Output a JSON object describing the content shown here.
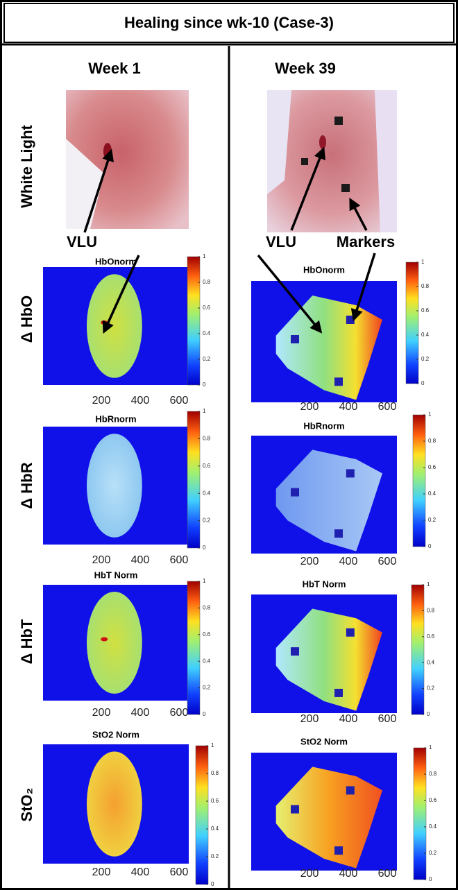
{
  "title": "Healing since wk-10 (Case-3)",
  "columns": [
    "Week 1",
    "Week 39"
  ],
  "rows": [
    {
      "label": "White Light"
    },
    {
      "label": "Δ HbO",
      "panels": [
        "HbOnorm",
        "HbOnorm"
      ]
    },
    {
      "label": "Δ HbR",
      "panels": [
        "HbRnorm",
        "HbRnorm"
      ]
    },
    {
      "label": "Δ HbT",
      "panels": [
        "HbT Norm",
        "HbT Norm"
      ]
    },
    {
      "label": "StO₂",
      "panels": [
        "StO2 Norm",
        "StO2 Norm"
      ]
    }
  ],
  "annotations": [
    "VLU",
    "VLU",
    "Markers"
  ],
  "x_axis": {
    "lim": [
      -100,
      650
    ],
    "ticks": [
      200,
      400,
      600
    ]
  },
  "colorbar": {
    "lim": [
      0,
      1
    ],
    "ticks": [
      0,
      0.2,
      0.4,
      0.6,
      0.8,
      1
    ]
  }
}
